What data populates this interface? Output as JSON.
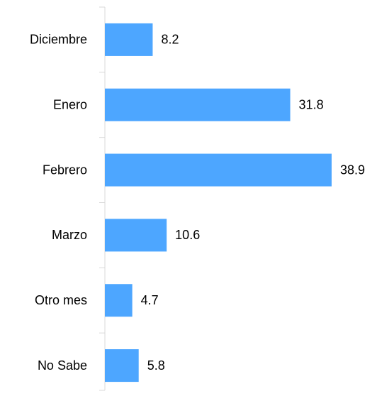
{
  "chart_data": {
    "type": "barh",
    "categories": [
      "Diciembre",
      "Enero",
      "Febrero",
      "Marzo",
      "Otro mes",
      "No Sabe"
    ],
    "values": [
      8.2,
      31.8,
      38.9,
      10.6,
      4.7,
      5.8
    ],
    "color": "#4da6ff",
    "xlim": [
      0,
      40
    ]
  }
}
